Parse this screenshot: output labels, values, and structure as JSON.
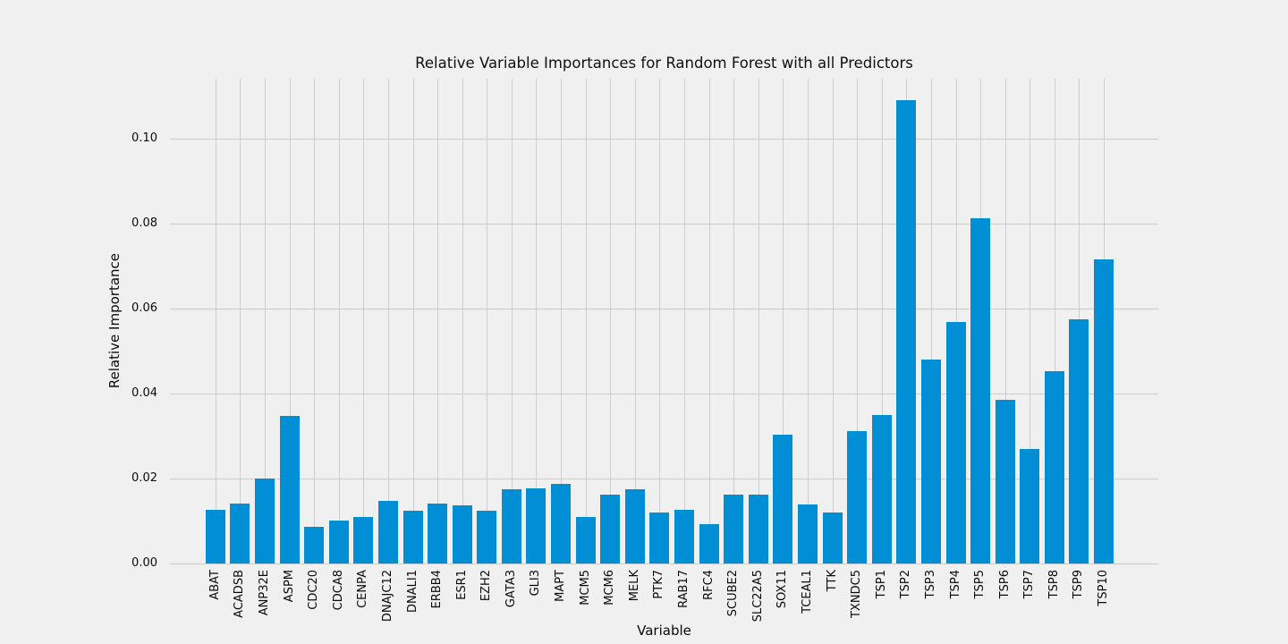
{
  "chart_data": {
    "type": "bar",
    "title": "Relative Variable Importances for Random Forest with all Predictors",
    "xlabel": "Variable",
    "ylabel": "Relative Importance",
    "categories": [
      "ABAT",
      "ACADSB",
      "ANP32E",
      "ASPM",
      "CDC20",
      "CDCA8",
      "CENPA",
      "DNAJC12",
      "DNALI1",
      "ERBB4",
      "ESR1",
      "EZH2",
      "GATA3",
      "GLI3",
      "MAPT",
      "MCM5",
      "MCM6",
      "MELK",
      "PTK7",
      "RAB17",
      "RFC4",
      "SCUBE2",
      "SLC22A5",
      "SOX11",
      "TCEAL1",
      "TTK",
      "TXNDC5",
      "TSP1",
      "TSP2",
      "TSP3",
      "TSP4",
      "TSP5",
      "TSP6",
      "TSP7",
      "TSP8",
      "TSP9",
      "TSP10"
    ],
    "values": [
      0.0126,
      0.0142,
      0.02,
      0.0347,
      0.0086,
      0.01,
      0.011,
      0.0147,
      0.0124,
      0.014,
      0.0136,
      0.0125,
      0.0175,
      0.0177,
      0.0187,
      0.011,
      0.0163,
      0.0175,
      0.012,
      0.0126,
      0.0093,
      0.0163,
      0.0163,
      0.0303,
      0.0139,
      0.0119,
      0.0312,
      0.035,
      0.1091,
      0.0481,
      0.0568,
      0.0813,
      0.0386,
      0.027,
      0.0453,
      0.0575,
      0.0716
    ],
    "yticks": {
      "labels": [
        "0.00",
        "0.02",
        "0.04",
        "0.06",
        "0.08",
        "0.10"
      ],
      "values": [
        0.0,
        0.02,
        0.04,
        0.06,
        0.08,
        0.1
      ]
    },
    "ylim": [
      0,
      0.1141
    ],
    "grid": true,
    "legend": false,
    "colors": {
      "bar": "#008fd5",
      "background": "#f0f0f0",
      "gridline": "#cbcbcb",
      "text": "#0a0a0a"
    }
  }
}
